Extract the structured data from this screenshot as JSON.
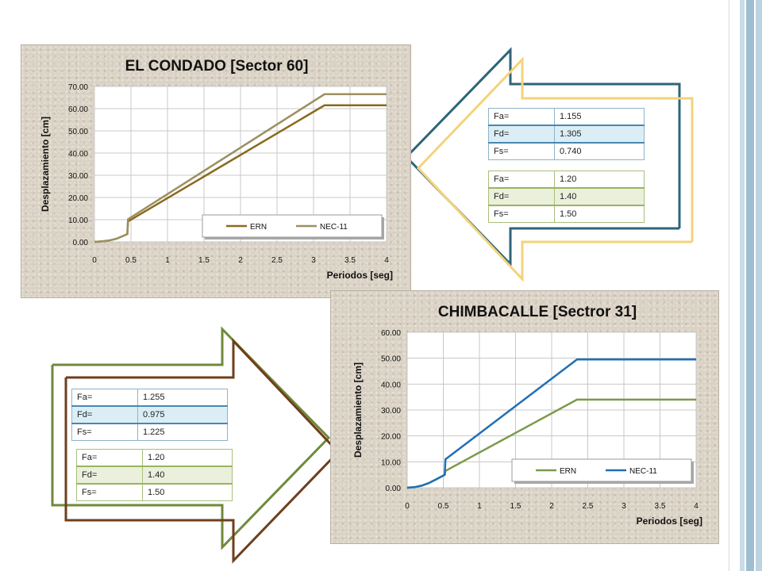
{
  "colors": {
    "sidebar_band_light": "#c9dbe6",
    "sidebar_band_dark": "#8fb2c6",
    "ern_sector60": "#8a6a1f",
    "nec_sector60": "#9b9060",
    "ern_sector31": "#7b9a4a",
    "nec_sector31": "#1f6fb6",
    "arrow_top_outer": "#2e6479",
    "arrow_top_inner": "#f3d37a",
    "arrow_bottom_outer": "#6f8a3a",
    "arrow_bottom_inner": "#6e3f1c"
  },
  "tables": {
    "top_site": [
      {
        "label": "Fa=",
        "value": "1.155"
      },
      {
        "label": "Fd=",
        "value": "1.305"
      },
      {
        "label": "Fs=",
        "value": "0.740"
      }
    ],
    "top_code": [
      {
        "label": "Fa=",
        "value": "1.20"
      },
      {
        "label": "Fd=",
        "value": "1.40"
      },
      {
        "label": "Fs=",
        "value": "1.50"
      }
    ],
    "bottom_site": [
      {
        "label": "Fa=",
        "value": "1.255"
      },
      {
        "label": "Fd=",
        "value": "0.975"
      },
      {
        "label": "Fs=",
        "value": "1.225"
      }
    ],
    "bottom_code": [
      {
        "label": "Fa=",
        "value": "1.20"
      },
      {
        "label": "Fd=",
        "value": "1.40"
      },
      {
        "label": "Fs=",
        "value": "1.50"
      }
    ]
  },
  "chart_data": [
    {
      "type": "line",
      "title": "EL CONDADO [Sector 60]",
      "xlabel": "Periodos [seg]",
      "ylabel": "Desplazamiento [cm]",
      "xlim": [
        0,
        4
      ],
      "ylim": [
        0,
        70
      ],
      "x_ticks": [
        "0",
        "0.5",
        "1",
        "1.5",
        "2",
        "2.5",
        "3",
        "3.5",
        "4"
      ],
      "y_ticks": [
        "0.00",
        "10.00",
        "20.00",
        "30.00",
        "40.00",
        "50.00",
        "60.00",
        "70.00"
      ],
      "grid": true,
      "legend_position": "bottom-right",
      "series": [
        {
          "name": "ERN",
          "color": "#8a6a1f",
          "points": [
            [
              0,
              0
            ],
            [
              0.1,
              0.2
            ],
            [
              0.2,
              0.6
            ],
            [
              0.3,
              1.4
            ],
            [
              0.38,
              2.5
            ],
            [
              0.45,
              3.5
            ],
            [
              0.46,
              9.2
            ],
            [
              3.15,
              61.5
            ],
            [
              4,
              61.5
            ]
          ]
        },
        {
          "name": "NEC-11",
          "color": "#9b9060",
          "points": [
            [
              0,
              0
            ],
            [
              0.1,
              0.2
            ],
            [
              0.2,
              0.6
            ],
            [
              0.3,
              1.4
            ],
            [
              0.38,
              2.5
            ],
            [
              0.45,
              3.5
            ],
            [
              0.46,
              10.2
            ],
            [
              3.15,
              66.5
            ],
            [
              4,
              66.5
            ]
          ]
        }
      ]
    },
    {
      "type": "line",
      "title": "CHIMBACALLE [Sectror 31]",
      "xlabel": "Periodos [seg]",
      "ylabel": "Desplazamiento [cm]",
      "xlim": [
        0,
        4
      ],
      "ylim": [
        0,
        60
      ],
      "x_ticks": [
        "0",
        "0.5",
        "1",
        "1.5",
        "2",
        "2.5",
        "3",
        "3.5",
        "4"
      ],
      "y_ticks": [
        "0.00",
        "10.00",
        "20.00",
        "30.00",
        "40.00",
        "50.00",
        "60.00"
      ],
      "grid": true,
      "legend_position": "bottom-right",
      "series": [
        {
          "name": "ERN",
          "color": "#7b9a4a",
          "points": [
            [
              0,
              0
            ],
            [
              0.1,
              0.2
            ],
            [
              0.2,
              0.8
            ],
            [
              0.3,
              1.8
            ],
            [
              0.4,
              3.2
            ],
            [
              0.52,
              5
            ],
            [
              0.53,
              6.5
            ],
            [
              2.35,
              34
            ],
            [
              4,
              34
            ]
          ]
        },
        {
          "name": "NEC-11",
          "color": "#1f6fb6",
          "points": [
            [
              0,
              0
            ],
            [
              0.1,
              0.2
            ],
            [
              0.2,
              0.8
            ],
            [
              0.3,
              1.8
            ],
            [
              0.4,
              3.2
            ],
            [
              0.52,
              5
            ],
            [
              0.53,
              11
            ],
            [
              2.35,
              49.5
            ],
            [
              4,
              49.5
            ]
          ]
        }
      ]
    }
  ]
}
